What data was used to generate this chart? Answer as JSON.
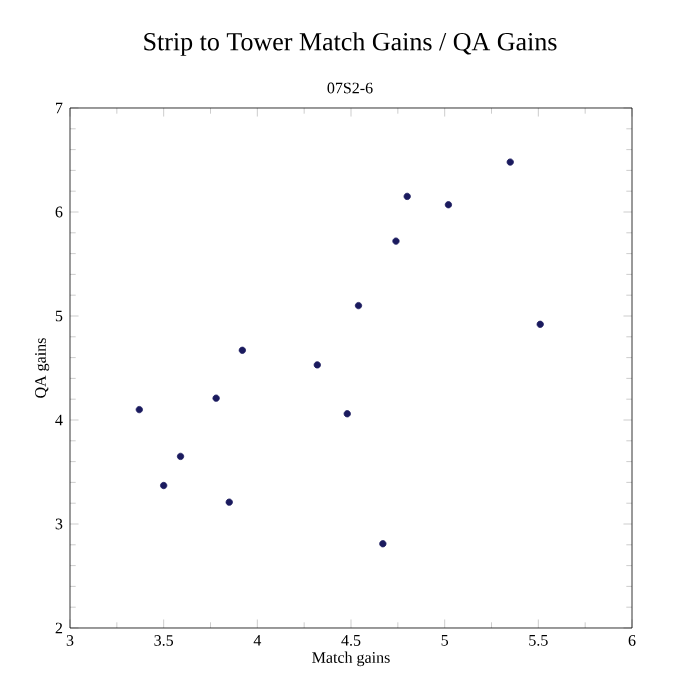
{
  "chart_data": {
    "type": "scatter",
    "title": "Strip to Tower Match Gains / QA Gains",
    "subtitle": "07S2-6",
    "xlabel": "Match gains",
    "ylabel": "QA gains",
    "xlim": [
      3,
      6
    ],
    "ylim": [
      2,
      7
    ],
    "xticks": [
      3,
      3.5,
      4,
      4.5,
      5,
      5.5,
      6
    ],
    "yticks": [
      2,
      3,
      4,
      5,
      6,
      7
    ],
    "grid": false,
    "marker": "circle",
    "series": [
      {
        "color": "#1a1a5e",
        "x": [
          3.37,
          3.5,
          3.59,
          3.78,
          3.85,
          3.92,
          4.32,
          4.48,
          4.54,
          4.67,
          4.74,
          4.8,
          5.02,
          5.35,
          5.51
        ],
        "values": [
          4.1,
          3.37,
          3.65,
          4.21,
          3.21,
          4.67,
          4.53,
          4.06,
          5.1,
          2.81,
          5.72,
          6.15,
          6.07,
          6.48,
          4.92
        ]
      }
    ]
  }
}
